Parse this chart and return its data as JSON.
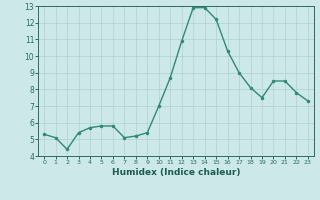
{
  "x": [
    0,
    1,
    2,
    3,
    4,
    5,
    6,
    7,
    8,
    9,
    10,
    11,
    12,
    13,
    14,
    15,
    16,
    17,
    18,
    19,
    20,
    21,
    22,
    23
  ],
  "y": [
    5.3,
    5.1,
    4.4,
    5.4,
    5.7,
    5.8,
    5.8,
    5.1,
    5.2,
    5.4,
    7.0,
    8.7,
    10.9,
    12.9,
    12.9,
    12.2,
    10.3,
    9.0,
    8.1,
    7.5,
    8.5,
    8.5,
    7.8,
    7.3
  ],
  "xlabel": "Humidex (Indice chaleur)",
  "xlim": [
    -0.5,
    23.5
  ],
  "ylim": [
    4,
    13
  ],
  "yticks": [
    4,
    5,
    6,
    7,
    8,
    9,
    10,
    11,
    12,
    13
  ],
  "xticks": [
    0,
    1,
    2,
    3,
    4,
    5,
    6,
    7,
    8,
    9,
    10,
    11,
    12,
    13,
    14,
    15,
    16,
    17,
    18,
    19,
    20,
    21,
    22,
    23
  ],
  "line_color": "#2e8b74",
  "marker": ".",
  "bg_color": "#cce8e8",
  "grid_color": "#b0d0d0",
  "tick_label_color": "#2e6b5e",
  "axis_label_color": "#1a5c4e",
  "line_width": 1.0,
  "marker_size": 3
}
